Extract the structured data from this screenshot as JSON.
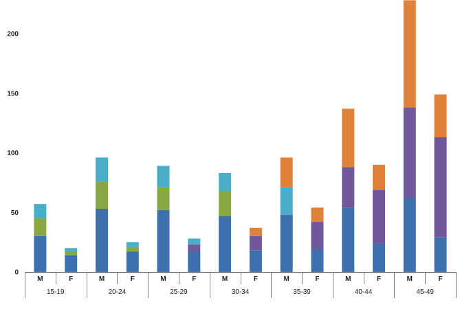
{
  "chart_data": {
    "type": "bar",
    "stacked": true,
    "title": "",
    "xlabel": "",
    "ylabel": "",
    "ylim": [
      0,
      230
    ],
    "y_ticks": [
      0,
      50,
      100,
      150,
      200
    ],
    "grid": false,
    "legend": "none",
    "groups": [
      "15-19",
      "20-24",
      "25-29",
      "30-34",
      "35-39",
      "40-44",
      "45-49"
    ],
    "sub_categories": [
      "M",
      "F"
    ],
    "categories": [
      "M",
      "F",
      "M",
      "F",
      "M",
      "F",
      "M",
      "F",
      "M",
      "F",
      "M",
      "F",
      "M",
      "F"
    ],
    "series": [
      {
        "color": "#3e70ae",
        "values": [
          30,
          14,
          53,
          17,
          52,
          17,
          47,
          18,
          48,
          19,
          54,
          24,
          62,
          29
        ]
      },
      {
        "color": "#88a844",
        "values": [
          15,
          3,
          23,
          4,
          19,
          0,
          21,
          0,
          0,
          0,
          0,
          0,
          0,
          0
        ]
      },
      {
        "color": "#70589a",
        "values": [
          0,
          0,
          0,
          0,
          0,
          6,
          0,
          12,
          0,
          23,
          34,
          45,
          76,
          84
        ]
      },
      {
        "color": "#4aaec9",
        "values": [
          12,
          3,
          20,
          4,
          18,
          5,
          15,
          0,
          23,
          0,
          0,
          0,
          0,
          0
        ]
      },
      {
        "color": "#e0823a",
        "values": [
          0,
          0,
          0,
          0,
          0,
          0,
          0,
          7,
          25,
          12,
          49,
          21,
          90,
          36
        ]
      }
    ]
  }
}
